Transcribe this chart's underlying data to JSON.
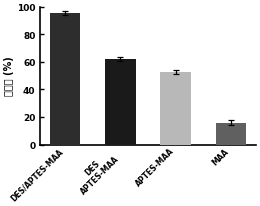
{
  "values": [
    95.5,
    62.0,
    52.5,
    16.0
  ],
  "errors": [
    1.5,
    1.2,
    1.5,
    1.8
  ],
  "bar_colors": [
    "#2d2d2d",
    "#1a1a1a",
    "#b8b8b8",
    "#606060"
  ],
  "tick_labels": [
    "DES/APTES-MAA",
    "DES\nAPTES-MAA",
    "APTES-MAA",
    "MAA"
  ],
  "ylabel": "回收率 (%)",
  "ylim": [
    0,
    100
  ],
  "yticks": [
    0,
    20,
    40,
    60,
    80,
    100
  ],
  "background_color": "#ffffff",
  "bar_width": 0.55
}
